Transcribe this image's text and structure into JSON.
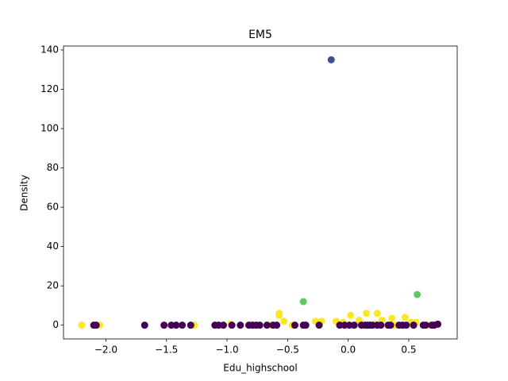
{
  "chart_data": {
    "type": "scatter",
    "title": "EM5",
    "x_label": "Edu_highschool",
    "y_label": "Density",
    "xlim": [
      -2.35,
      0.9
    ],
    "ylim": [
      -7,
      142
    ],
    "xticks": [
      {
        "value": -2,
        "label": "−2.0"
      },
      {
        "value": -1.5,
        "label": "−1.5"
      },
      {
        "value": -1,
        "label": "−1.0"
      },
      {
        "value": -0.5,
        "label": "−0.5"
      },
      {
        "value": 0,
        "label": "0.0"
      },
      0.5
    ],
    "yticks": [
      0,
      20,
      40,
      60,
      80,
      100,
      120,
      140
    ],
    "series": [
      {
        "color": "#3b528b",
        "x": [
          -0.14
        ],
        "values": [
          135
        ]
      },
      {
        "color": "#5ec962",
        "x": [
          -0.37,
          0.57
        ],
        "values": [
          12,
          15.6
        ]
      },
      {
        "color": "#fde725",
        "x": [
          -2.2,
          -2.09,
          -2.05,
          -1.27,
          -0.97,
          -0.64,
          -0.57,
          -0.57,
          -0.53,
          -0.46,
          -0.35,
          -0.27,
          -0.22,
          -0.1,
          -0.07,
          -0.04,
          0.02,
          0.09,
          0.15,
          0.22,
          0.24,
          0.28,
          0.36,
          0.39,
          0.47,
          0.52,
          0.56,
          0.66
        ],
        "values": [
          0,
          0,
          0,
          0,
          0.5,
          0,
          6,
          5,
          2,
          0,
          0,
          2,
          2,
          2,
          0,
          1.5,
          5,
          2.5,
          6,
          0.5,
          6,
          2.5,
          3.5,
          0,
          4,
          1.5,
          1.5,
          0
        ]
      },
      {
        "color": "#440154",
        "x": [
          -2.1,
          -2.08,
          -1.68,
          -1.52,
          -1.46,
          -1.42,
          -1.37,
          -1.3,
          -1.1,
          -1.07,
          -1.03,
          -0.96,
          -0.89,
          -0.82,
          -0.79,
          -0.76,
          -0.73,
          -0.67,
          -0.62,
          -0.59,
          -0.44,
          -0.37,
          -0.35,
          -0.24,
          -0.07,
          -0.03,
          0.01,
          0.05,
          0.11,
          0.14,
          0.16,
          0.18,
          0.2,
          0.24,
          0.27,
          0.33,
          0.35,
          0.42,
          0.45,
          0.48,
          0.54,
          0.62,
          0.64,
          0.69,
          0.71,
          0.74
        ],
        "values": [
          0,
          0,
          0,
          0,
          0,
          0,
          0,
          0,
          0,
          0,
          0,
          0,
          0,
          0,
          0,
          0,
          0,
          0,
          0,
          0,
          0,
          0,
          0,
          0,
          0,
          0,
          0,
          0,
          0,
          0,
          0,
          0,
          0,
          0,
          0,
          0,
          0,
          0,
          0,
          0,
          0,
          0,
          0,
          0,
          0,
          0.5
        ]
      }
    ]
  }
}
